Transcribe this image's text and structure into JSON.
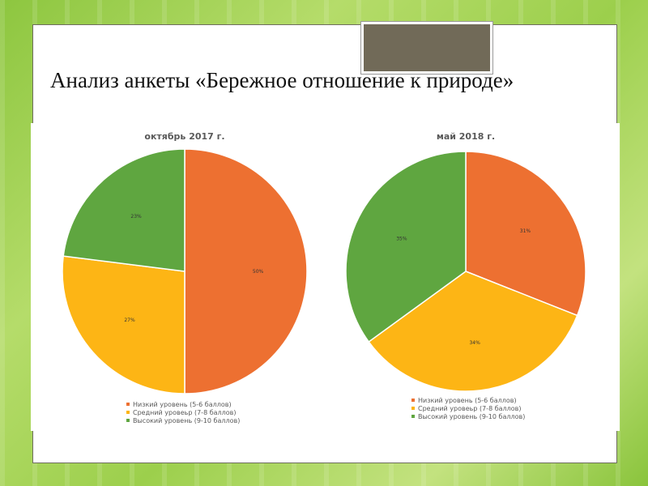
{
  "title": "Анализ анкеты «Бережное отношение к природе»",
  "chart_data": [
    {
      "type": "pie",
      "title": "октябрь 2017 г.",
      "categories": [
        "Низкий уровень (5-6 баллов)",
        "Средний уровеьр (7-8 баллов)",
        "Высокий уровень (9-10 баллов)"
      ],
      "values": [
        50,
        27,
        23
      ],
      "labels": [
        "50%",
        "27%",
        "23%"
      ],
      "colors": [
        "#ed7031",
        "#fdb515",
        "#5fa640"
      ],
      "legend": "bottom"
    },
    {
      "type": "pie",
      "title": "май 2018 г.",
      "categories": [
        "Низкий уровень (5-6 баллов)",
        "Средний уровеьр (7-8 баллов)",
        "Высокий уровень (9-10 баллов)"
      ],
      "values": [
        31,
        34,
        35
      ],
      "labels": [
        "31%",
        "34%",
        "35%"
      ],
      "colors": [
        "#ed7031",
        "#fdb515",
        "#5fa640"
      ],
      "legend": "bottom"
    }
  ]
}
